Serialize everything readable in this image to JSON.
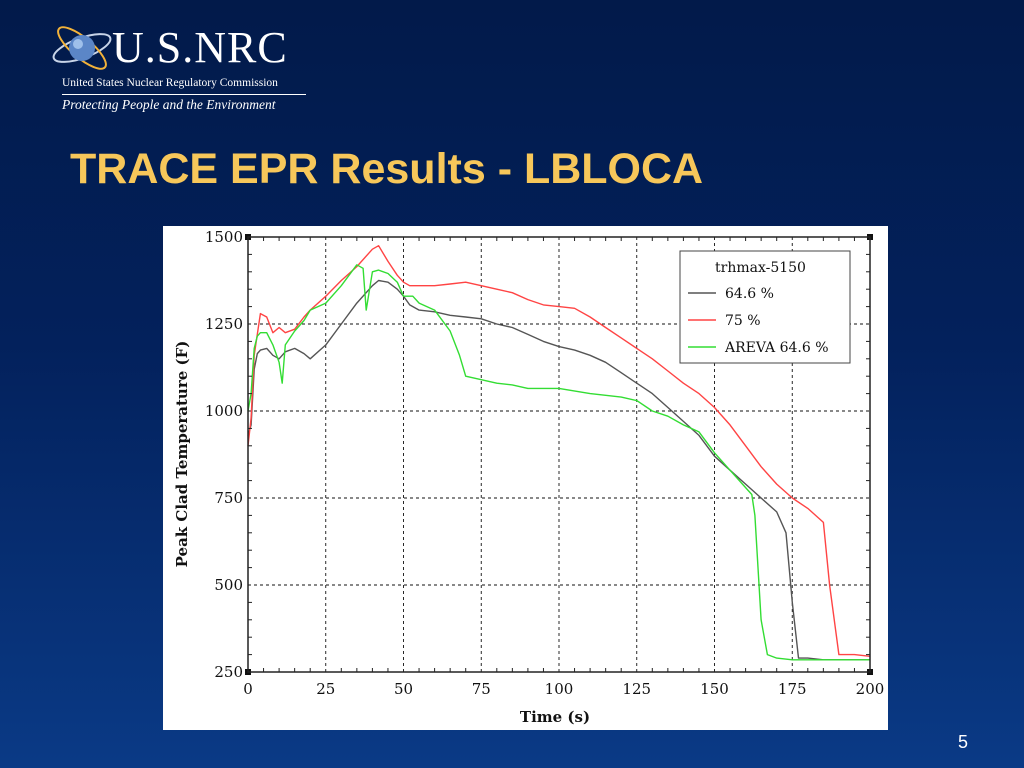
{
  "header": {
    "logo_wordmark": "U.S.NRC",
    "agency_name": "United States Nuclear Regulatory Commission",
    "tagline": "Protecting People and the Environment"
  },
  "slide": {
    "title": "TRACE EPR Results - LBLOCA",
    "page_number": "5"
  },
  "colors": {
    "background": "#03215c",
    "title": "#f7c75a",
    "series_64_6": "#555555",
    "series_75": "#ff4444",
    "series_areva": "#33dd33"
  },
  "chart_data": {
    "type": "line",
    "title": "",
    "xlabel": "Time (s)",
    "ylabel": "Peak Clad Temperature (F)",
    "xlim": [
      0,
      200
    ],
    "ylim": [
      250,
      1500
    ],
    "xticks": [
      0,
      25,
      50,
      75,
      100,
      125,
      150,
      175,
      200
    ],
    "yticks": [
      250,
      500,
      750,
      1000,
      1250,
      1500
    ],
    "grid": true,
    "legend": {
      "title": "trhmax-5150",
      "placement": "top-right"
    },
    "series": [
      {
        "name": "64.6 %",
        "color": "#555555",
        "x": [
          0,
          1,
          2,
          3,
          4,
          6,
          8,
          10,
          12,
          15,
          18,
          20,
          25,
          30,
          35,
          40,
          42,
          45,
          48,
          50,
          52,
          55,
          60,
          65,
          70,
          75,
          80,
          85,
          90,
          95,
          100,
          105,
          110,
          115,
          120,
          125,
          130,
          135,
          140,
          145,
          150,
          155,
          160,
          165,
          170,
          173,
          175,
          177,
          180,
          185,
          190,
          195,
          200
        ],
        "y": [
          930,
          960,
          1120,
          1165,
          1175,
          1180,
          1160,
          1150,
          1170,
          1180,
          1165,
          1150,
          1190,
          1250,
          1310,
          1360,
          1375,
          1370,
          1350,
          1330,
          1305,
          1290,
          1285,
          1275,
          1270,
          1265,
          1250,
          1240,
          1220,
          1200,
          1185,
          1175,
          1160,
          1140,
          1110,
          1080,
          1050,
          1010,
          970,
          930,
          870,
          830,
          790,
          750,
          710,
          650,
          450,
          290,
          290,
          285,
          285,
          285,
          285
        ]
      },
      {
        "name": "75 %",
        "color": "#ff4444",
        "x": [
          0,
          1,
          2,
          3,
          4,
          6,
          8,
          10,
          12,
          15,
          18,
          20,
          25,
          30,
          35,
          40,
          42,
          45,
          48,
          50,
          52,
          55,
          60,
          65,
          70,
          75,
          80,
          85,
          90,
          95,
          100,
          105,
          110,
          115,
          120,
          125,
          130,
          135,
          140,
          145,
          150,
          155,
          160,
          165,
          170,
          175,
          180,
          185,
          187,
          190,
          195,
          200
        ],
        "y": [
          900,
          980,
          1160,
          1220,
          1280,
          1270,
          1225,
          1240,
          1225,
          1235,
          1270,
          1290,
          1330,
          1375,
          1415,
          1465,
          1475,
          1430,
          1390,
          1370,
          1360,
          1360,
          1360,
          1365,
          1370,
          1360,
          1350,
          1340,
          1320,
          1305,
          1300,
          1295,
          1270,
          1240,
          1210,
          1180,
          1150,
          1115,
          1080,
          1050,
          1010,
          960,
          900,
          840,
          790,
          750,
          720,
          680,
          500,
          300,
          300,
          295
        ]
      },
      {
        "name": "AREVA 64.6 %",
        "color": "#33dd33",
        "x": [
          0,
          1,
          2,
          3,
          4,
          6,
          8,
          10,
          11,
          12,
          15,
          18,
          20,
          25,
          30,
          35,
          37,
          38,
          40,
          42,
          45,
          48,
          50,
          53,
          55,
          60,
          65,
          68,
          70,
          75,
          80,
          85,
          90,
          100,
          110,
          120,
          125,
          130,
          135,
          140,
          145,
          150,
          155,
          160,
          162,
          163,
          165,
          167,
          170,
          175,
          180,
          190,
          200
        ],
        "y": [
          1000,
          1050,
          1180,
          1215,
          1225,
          1225,
          1190,
          1140,
          1080,
          1190,
          1230,
          1260,
          1290,
          1310,
          1360,
          1420,
          1410,
          1290,
          1400,
          1405,
          1395,
          1370,
          1330,
          1330,
          1310,
          1290,
          1230,
          1160,
          1100,
          1090,
          1080,
          1075,
          1065,
          1065,
          1050,
          1040,
          1030,
          1000,
          985,
          960,
          940,
          880,
          830,
          780,
          760,
          700,
          400,
          300,
          290,
          285,
          285,
          285,
          285
        ]
      }
    ]
  }
}
